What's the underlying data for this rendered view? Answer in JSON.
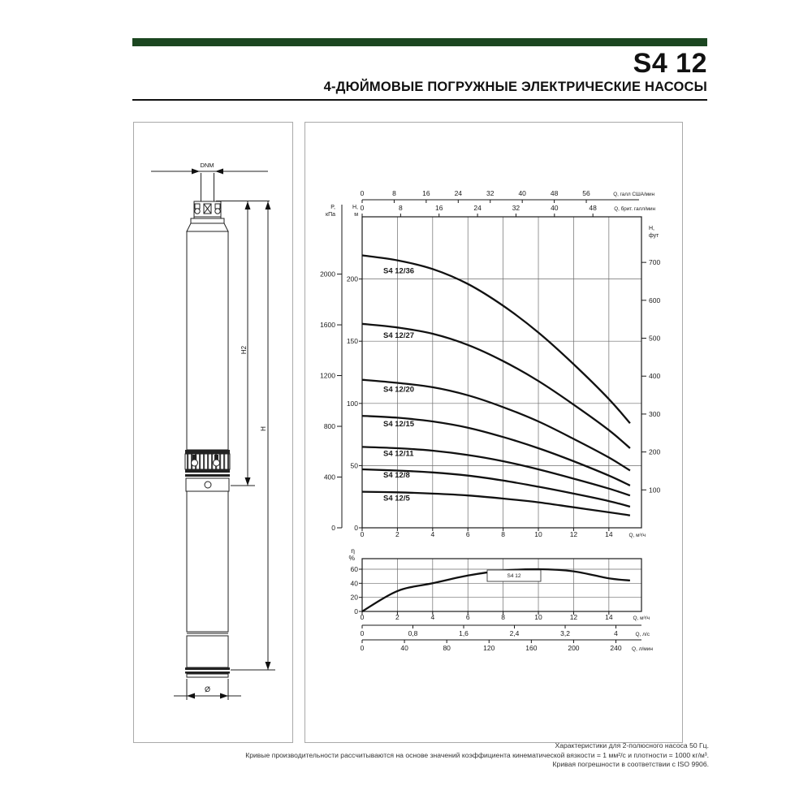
{
  "header": {
    "model": "S4 12",
    "subtitle": "4-ДЮЙМОВЫЕ ПОГРУЖНЫЕ ЭЛЕКТРИЧЕСКИЕ НАСОСЫ",
    "accent_color": "#1b4620"
  },
  "drawing": {
    "labels": {
      "dnm": "DNM",
      "h2": "H2",
      "h": "H",
      "diameter": "Ø"
    }
  },
  "chart_data": [
    {
      "type": "line",
      "title": "",
      "x": [
        0,
        2,
        4,
        6,
        8,
        10,
        12,
        14,
        15.2
      ],
      "series": [
        {
          "name": "S4 12/36",
          "values": [
            219,
            215,
            208,
            196,
            178.5,
            157,
            131.5,
            103.5,
            84
          ]
        },
        {
          "name": "S4 12/27",
          "values": [
            164,
            161,
            156,
            147,
            134,
            118,
            99,
            78.5,
            64
          ]
        },
        {
          "name": "S4 12/20",
          "values": [
            119,
            116.5,
            113,
            106.5,
            97,
            85.5,
            71.5,
            56.5,
            46
          ]
        },
        {
          "name": "S4 12/15",
          "values": [
            90,
            88.5,
            85.5,
            80.5,
            73,
            64,
            53.5,
            42,
            34
          ]
        },
        {
          "name": "S4 12/11",
          "values": [
            65,
            64,
            62,
            58.5,
            53.5,
            47,
            39.5,
            31.5,
            26
          ]
        },
        {
          "name": "S4 12/8",
          "values": [
            47,
            46,
            44.5,
            42,
            38,
            33,
            27.5,
            21.5,
            17
          ]
        },
        {
          "name": "S4 12/5",
          "values": [
            29,
            28.5,
            27.5,
            26,
            23.5,
            20.5,
            16.5,
            12.5,
            10
          ]
        }
      ],
      "xlabel": "Q, м³/ч",
      "x_ticks": [
        0,
        2,
        4,
        6,
        8,
        10,
        12,
        14
      ],
      "xlim": [
        0,
        15.85
      ],
      "ylim": [
        0,
        250
      ],
      "y_ticks": [
        0,
        50,
        100,
        150,
        200
      ],
      "left_axis_head": [
        "H,",
        "м"
      ],
      "kpa_axis": {
        "head": [
          "P,",
          "кПа"
        ],
        "ticks": [
          0,
          400,
          800,
          1200,
          1600,
          2000
        ]
      },
      "feet_axis": {
        "head": [
          "H,",
          "фут"
        ],
        "ticks": [
          100,
          200,
          300,
          400,
          500,
          600,
          700
        ]
      },
      "us_gpm_axis": {
        "label": "Q, галл США/мин",
        "ticks": [
          0,
          8,
          16,
          24,
          32,
          40,
          48,
          56
        ]
      },
      "imp_gpm_axis": {
        "label": "Q, брит. галл/мин",
        "ticks": [
          0,
          8,
          16,
          24,
          32,
          40,
          48
        ]
      },
      "grid": true,
      "legend_position": "on-curves"
    },
    {
      "type": "line",
      "title": "",
      "x": [
        0,
        2,
        4,
        6,
        8,
        10,
        12,
        14,
        15.2
      ],
      "series": [
        {
          "name": "S4 12",
          "values": [
            0,
            29,
            40,
            51,
            58,
            60,
            57,
            47,
            44
          ]
        }
      ],
      "xlabel": "Q, м³/ч",
      "x_ticks": [
        0,
        2,
        4,
        6,
        8,
        10,
        12,
        14
      ],
      "xlim": [
        0,
        15.85
      ],
      "ylim": [
        0,
        75
      ],
      "y_ticks": [
        0,
        20,
        40,
        60
      ],
      "ylabel_head": [
        "η",
        "%"
      ],
      "lps_axis": {
        "label": "Q, л/с",
        "tick_labels": [
          "0",
          "0,8",
          "1,6",
          "2,4",
          "3,2",
          "4"
        ],
        "tick_values": [
          0,
          0.8,
          1.6,
          2.4,
          3.2,
          4
        ]
      },
      "lpm_axis": {
        "label": "Q, л/мин",
        "ticks": [
          0,
          40,
          80,
          120,
          160,
          200,
          240
        ]
      },
      "grid": true
    }
  ],
  "footnotes": {
    "line1": "Характеристики для 2-полюсного насоса 50 Гц.",
    "line2": "Кривые производительности рассчитываются на основе значений коэффициента кинематической вязкости = 1 мм²/с и плотности = 1000 кг/м³.",
    "line3": "Кривая погрешности в соответствии с ISO 9906."
  }
}
